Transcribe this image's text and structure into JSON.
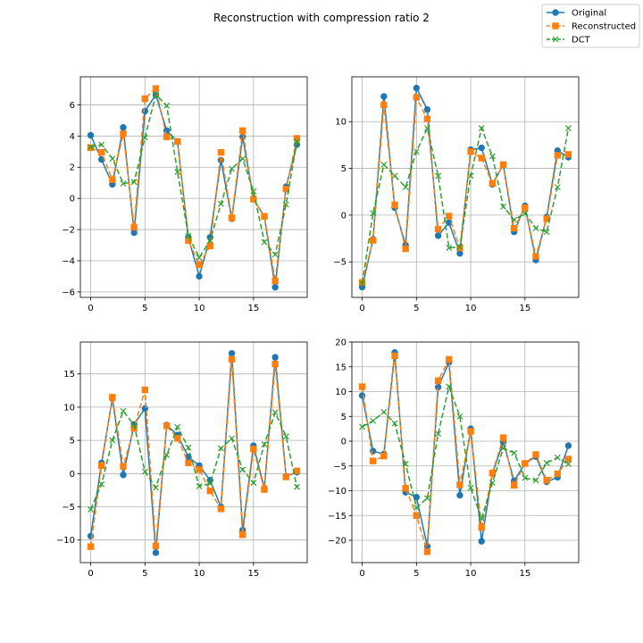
{
  "figure": {
    "title": "Reconstruction with compression ratio 2"
  },
  "legend": {
    "placement": "top-right",
    "entries": [
      {
        "name": "Original",
        "color": "#1f77b4",
        "marker": "circle",
        "line": "solid"
      },
      {
        "name": "Reconstructed",
        "color": "#ff7f0e",
        "marker": "square",
        "line": "dashed"
      },
      {
        "name": "DCT",
        "color": "#2ca02c",
        "marker": "x",
        "line": "dashed"
      }
    ]
  },
  "chart_data": [
    {
      "type": "line",
      "title": "",
      "xlabel": "",
      "ylabel": "",
      "grid": true,
      "xlim": [
        -0.95,
        19.95
      ],
      "ylim": [
        -6.35,
        7.8
      ],
      "xticks": [
        0,
        5,
        10,
        15
      ],
      "yticks": [
        -6,
        -4,
        -2,
        0,
        2,
        4,
        6
      ],
      "x": [
        0,
        1,
        2,
        3,
        4,
        5,
        6,
        7,
        8,
        9,
        10,
        11,
        12,
        13,
        14,
        15,
        16,
        17,
        18,
        19
      ],
      "series": [
        {
          "name": "Original",
          "values": [
            4.05,
            2.5,
            0.9,
            4.55,
            -2.2,
            5.6,
            6.65,
            4.35,
            3.65,
            -2.5,
            -5.0,
            -2.5,
            2.45,
            -1.3,
            3.95,
            -0.05,
            -1.15,
            -5.7,
            0.75,
            3.45
          ]
        },
        {
          "name": "Reconstructed",
          "values": [
            3.25,
            2.95,
            1.2,
            4.15,
            -1.85,
            6.4,
            7.05,
            3.95,
            3.65,
            -2.7,
            -4.25,
            -3.05,
            2.95,
            -1.25,
            4.35,
            -0.05,
            -1.15,
            -5.3,
            0.6,
            3.85
          ]
        },
        {
          "name": "DCT",
          "values": [
            3.3,
            3.45,
            2.55,
            0.95,
            1.05,
            3.9,
            6.65,
            5.95,
            1.7,
            -2.4,
            -3.8,
            -2.7,
            -0.35,
            1.9,
            2.55,
            0.45,
            -2.8,
            -3.6,
            -0.4,
            3.65
          ]
        }
      ]
    },
    {
      "type": "line",
      "title": "",
      "xlabel": "",
      "ylabel": "",
      "grid": true,
      "xlim": [
        -0.95,
        19.95
      ],
      "ylim": [
        -8.8,
        14.8
      ],
      "xticks": [
        0,
        5,
        10,
        15
      ],
      "yticks": [
        -5,
        0,
        5,
        10
      ],
      "x": [
        0,
        1,
        2,
        3,
        4,
        5,
        6,
        7,
        8,
        9,
        10,
        11,
        12,
        13,
        14,
        15,
        16,
        17,
        18,
        19
      ],
      "series": [
        {
          "name": "Original",
          "values": [
            -7.7,
            -2.6,
            12.7,
            0.8,
            -3.2,
            13.6,
            11.3,
            -2.2,
            -0.8,
            -4.1,
            7.0,
            7.2,
            3.3,
            5.4,
            -1.8,
            1.0,
            -4.8,
            -0.2,
            6.9,
            6.2
          ]
        },
        {
          "name": "Reconstructed",
          "values": [
            -7.2,
            -2.7,
            11.8,
            1.1,
            -3.6,
            12.6,
            10.3,
            -1.5,
            -0.1,
            -3.5,
            6.8,
            6.1,
            3.4,
            5.4,
            -1.4,
            0.8,
            -4.4,
            -0.4,
            6.4,
            6.5
          ]
        },
        {
          "name": "DCT",
          "values": [
            -7.3,
            0.2,
            5.4,
            4.2,
            3.0,
            6.8,
            9.3,
            4.2,
            -3.5,
            -3.4,
            4.2,
            9.3,
            6.3,
            0.9,
            -0.5,
            0.2,
            -1.4,
            -1.8,
            3.0,
            9.3
          ]
        }
      ]
    },
    {
      "type": "line",
      "title": "",
      "xlabel": "",
      "ylabel": "",
      "grid": true,
      "xlim": [
        -0.95,
        19.95
      ],
      "ylim": [
        -13.4,
        19.8
      ],
      "xticks": [
        0,
        5,
        10,
        15
      ],
      "yticks": [
        -10,
        -5,
        0,
        5,
        10,
        15
      ],
      "x": [
        0,
        1,
        2,
        3,
        4,
        5,
        6,
        7,
        8,
        9,
        10,
        11,
        12,
        13,
        14,
        15,
        16,
        17,
        18,
        19
      ],
      "series": [
        {
          "name": "Original",
          "values": [
            -9.4,
            1.6,
            11.3,
            -0.2,
            7.4,
            9.8,
            -11.9,
            7.3,
            5.8,
            2.5,
            1.2,
            -1.0,
            -5.0,
            18.1,
            -8.5,
            4.2,
            -2.2,
            17.5,
            -0.4,
            0.2
          ]
        },
        {
          "name": "Reconstructed",
          "values": [
            -11.0,
            1.2,
            11.5,
            1.1,
            6.8,
            12.6,
            -10.9,
            7.2,
            5.3,
            1.6,
            0.6,
            -2.6,
            -5.3,
            17.2,
            -9.2,
            3.7,
            -2.4,
            16.5,
            -0.5,
            0.4
          ]
        },
        {
          "name": "DCT",
          "values": [
            -5.4,
            -1.6,
            5.0,
            9.4,
            7.3,
            0.3,
            -2.1,
            2.8,
            7.0,
            3.9,
            -1.9,
            -1.5,
            3.8,
            5.3,
            0.6,
            -1.4,
            4.4,
            9.2,
            5.6,
            -2.0
          ]
        }
      ]
    },
    {
      "type": "line",
      "title": "",
      "xlabel": "",
      "ylabel": "",
      "grid": true,
      "xlim": [
        -0.95,
        19.95
      ],
      "ylim": [
        -24.5,
        20.0
      ],
      "xticks": [
        0,
        5,
        10,
        15
      ],
      "yticks": [
        -20,
        -15,
        -10,
        -5,
        0,
        5,
        10,
        15,
        20
      ],
      "x": [
        0,
        1,
        2,
        3,
        4,
        5,
        6,
        7,
        8,
        9,
        10,
        11,
        12,
        13,
        14,
        15,
        16,
        17,
        18,
        19
      ],
      "series": [
        {
          "name": "Original",
          "values": [
            9.2,
            -2.0,
            -2.6,
            17.9,
            -10.3,
            -11.3,
            -21.2,
            10.9,
            15.9,
            -10.9,
            2.5,
            -20.2,
            -6.5,
            -0.2,
            -8.0,
            -4.5,
            -3.1,
            -8.2,
            -7.3,
            -0.9
          ]
        },
        {
          "name": "Reconstructed",
          "values": [
            11.0,
            -4.0,
            -3.0,
            17.2,
            -9.5,
            -15.0,
            -22.3,
            12.2,
            16.5,
            -8.8,
            2.0,
            -17.4,
            -6.4,
            0.7,
            -8.9,
            -4.5,
            -2.7,
            -7.9,
            -6.6,
            -3.6
          ]
        },
        {
          "name": "DCT",
          "values": [
            2.9,
            4.1,
            5.9,
            3.6,
            -4.6,
            -13.4,
            -11.5,
            1.5,
            11.0,
            5.0,
            -9.4,
            -15.6,
            -8.4,
            -1.4,
            -2.4,
            -7.4,
            -7.9,
            -4.4,
            -3.3,
            -4.6
          ]
        }
      ]
    }
  ]
}
